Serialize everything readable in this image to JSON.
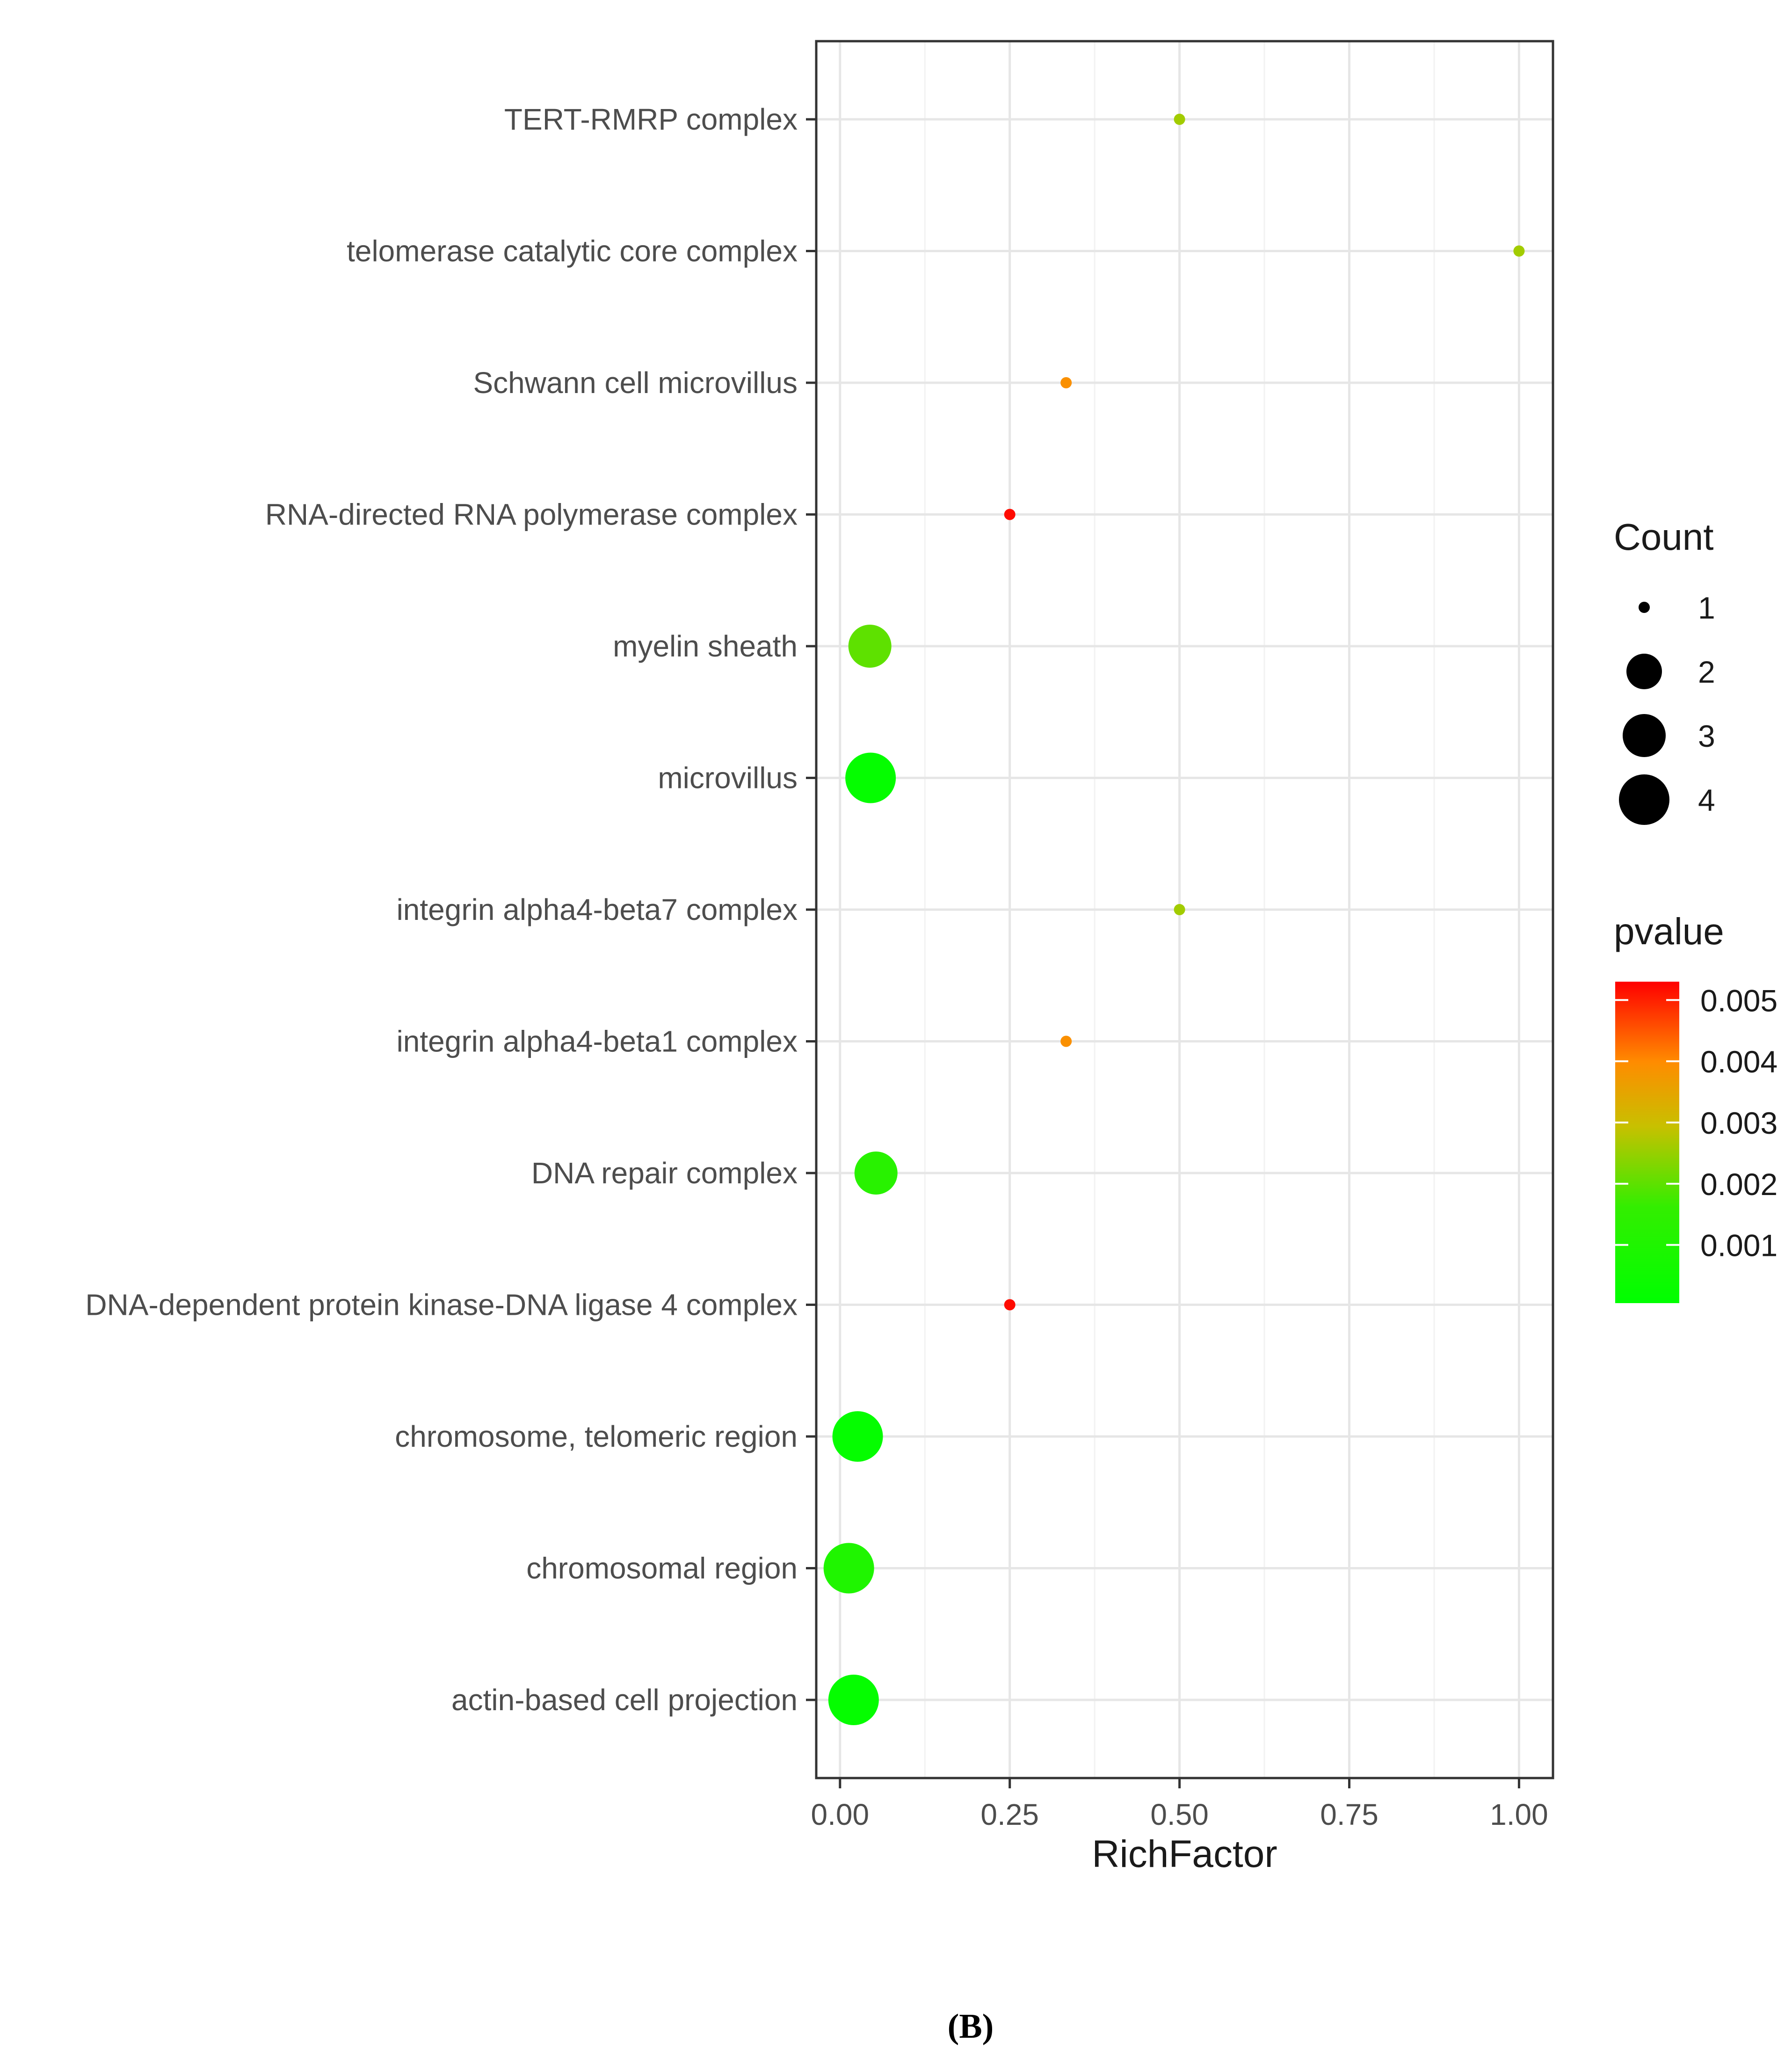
{
  "chart_data": {
    "type": "scatter",
    "title": "",
    "xlabel": "RichFactor",
    "ylabel": "",
    "xlim": [
      -0.035,
      1.05
    ],
    "x_ticks": [
      0.0,
      0.25,
      0.5,
      0.75,
      1.0
    ],
    "x_tick_labels": [
      "0.00",
      "0.25",
      "0.50",
      "0.75",
      "1.00"
    ],
    "grid": true,
    "categories": [
      "TERT-RMRP complex",
      "telomerase catalytic core complex",
      "Schwann cell microvillus",
      "RNA-directed RNA polymerase complex",
      "myelin sheath",
      "microvillus",
      "integrin alpha4-beta7 complex",
      "integrin alpha4-beta1 complex",
      "DNA repair complex",
      "DNA-dependent protein kinase-DNA ligase 4 complex",
      "chromosome, telomeric region",
      "chromosomal region",
      "actin-based cell projection"
    ],
    "points": [
      {
        "term": "TERT-RMRP complex",
        "richfactor": 0.5,
        "count": 1,
        "pvalue": 0.0026
      },
      {
        "term": "telomerase catalytic core complex",
        "richfactor": 1.0,
        "count": 1,
        "pvalue": 0.0026
      },
      {
        "term": "Schwann cell microvillus",
        "richfactor": 0.333,
        "count": 1,
        "pvalue": 0.0039
      },
      {
        "term": "RNA-directed RNA polymerase complex",
        "richfactor": 0.25,
        "count": 1,
        "pvalue": 0.0052
      },
      {
        "term": "myelin sheath",
        "richfactor": 0.044,
        "count": 3,
        "pvalue": 0.002
      },
      {
        "term": "microvillus",
        "richfactor": 0.045,
        "count": 4,
        "pvalue": 0.0002
      },
      {
        "term": "integrin alpha4-beta7 complex",
        "richfactor": 0.5,
        "count": 1,
        "pvalue": 0.0026
      },
      {
        "term": "integrin alpha4-beta1 complex",
        "richfactor": 0.333,
        "count": 1,
        "pvalue": 0.0039
      },
      {
        "term": "DNA repair complex",
        "richfactor": 0.053,
        "count": 3,
        "pvalue": 0.0013
      },
      {
        "term": "DNA-dependent protein kinase-DNA ligase 4 complex",
        "richfactor": 0.25,
        "count": 1,
        "pvalue": 0.0052
      },
      {
        "term": "chromosome, telomeric region",
        "richfactor": 0.026,
        "count": 4,
        "pvalue": 0.0002
      },
      {
        "term": "chromosomal region",
        "richfactor": 0.013,
        "count": 4,
        "pvalue": 0.001
      },
      {
        "term": "actin-based cell projection",
        "richfactor": 0.02,
        "count": 4,
        "pvalue": 0.0002
      }
    ],
    "size_legend": {
      "title": "Count",
      "values": [
        1,
        2,
        3,
        4
      ],
      "labels": [
        "1",
        "2",
        "3",
        "4"
      ]
    },
    "color_legend": {
      "title": "pvalue",
      "range": [
        5e-05,
        0.0053
      ],
      "breaks": [
        0.005,
        0.004,
        0.003,
        0.002,
        0.001
      ],
      "labels": [
        "0.005",
        "0.004",
        "0.003",
        "0.002",
        "0.001"
      ],
      "low_color": "#00ff00",
      "high_color": "#ff0000"
    },
    "panel_label": "(B)"
  }
}
